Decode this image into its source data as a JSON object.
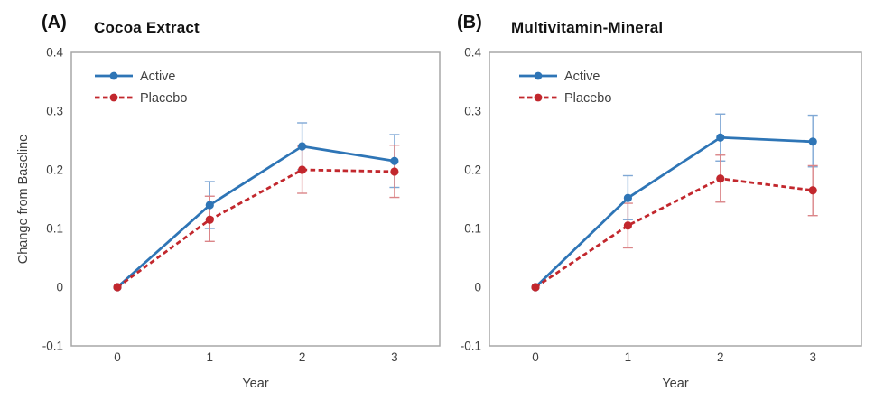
{
  "figure": {
    "background": "#ffffff"
  },
  "colors": {
    "axis": "#A7A7A7",
    "tick_text": "#404040",
    "axis_title_text": "#3d3d3d",
    "legend_text": "#404040",
    "header_text": "#111111",
    "active_blue": "#2E75B6",
    "placebo_red": "#C2272D"
  },
  "chart_data": [
    {
      "type": "line",
      "panel_tag": "(A)",
      "title": "Cocoa Extract",
      "xlabel": "Year",
      "ylabel": "Change from Baseline",
      "x": [
        0,
        1,
        2,
        3
      ],
      "xtick_labels": [
        "0",
        "1",
        "2",
        "3"
      ],
      "ylim": [
        -0.1,
        0.4
      ],
      "yticks": [
        0.4,
        0.3,
        0.2,
        0.1,
        0,
        -0.1
      ],
      "grid": false,
      "legend_position": "top-left-inside",
      "error_bars": "95% CI",
      "series": [
        {
          "name": "Active",
          "color": "#2E75B6",
          "error_color": "#7FA8D5",
          "style": "solid",
          "marker": "circle",
          "values": [
            0,
            0.14,
            0.24,
            0.215
          ],
          "ci_lower": [
            null,
            0.1,
            0.2,
            0.17
          ],
          "ci_upper": [
            null,
            0.18,
            0.28,
            0.26
          ]
        },
        {
          "name": "Placebo",
          "color": "#C2272D",
          "error_color": "#DB8588",
          "style": "dashed",
          "marker": "circle",
          "values": [
            0,
            0.115,
            0.2,
            0.197
          ],
          "ci_lower": [
            null,
            0.078,
            0.16,
            0.153
          ],
          "ci_upper": [
            null,
            0.155,
            0.24,
            0.242
          ]
        }
      ]
    },
    {
      "type": "line",
      "panel_tag": "(B)",
      "title": "Multivitamin-Mineral",
      "xlabel": "Year",
      "ylabel": null,
      "x": [
        0,
        1,
        2,
        3
      ],
      "xtick_labels": [
        "0",
        "1",
        "2",
        "3"
      ],
      "ylim": [
        -0.1,
        0.4
      ],
      "yticks": [
        0.4,
        0.3,
        0.2,
        0.1,
        0,
        -0.1
      ],
      "grid": false,
      "legend_position": "top-left-inside",
      "error_bars": "95% CI",
      "series": [
        {
          "name": "Active",
          "color": "#2E75B6",
          "error_color": "#7FA8D5",
          "style": "solid",
          "marker": "circle",
          "values": [
            0,
            0.152,
            0.255,
            0.248
          ],
          "ci_lower": [
            null,
            0.115,
            0.215,
            0.205
          ],
          "ci_upper": [
            null,
            0.19,
            0.295,
            0.293
          ]
        },
        {
          "name": "Placebo",
          "color": "#C2272D",
          "error_color": "#DB8588",
          "style": "dashed",
          "marker": "circle",
          "values": [
            0,
            0.105,
            0.185,
            0.165
          ],
          "ci_lower": [
            null,
            0.067,
            0.145,
            0.122
          ],
          "ci_upper": [
            null,
            0.143,
            0.225,
            0.207
          ]
        }
      ]
    }
  ]
}
